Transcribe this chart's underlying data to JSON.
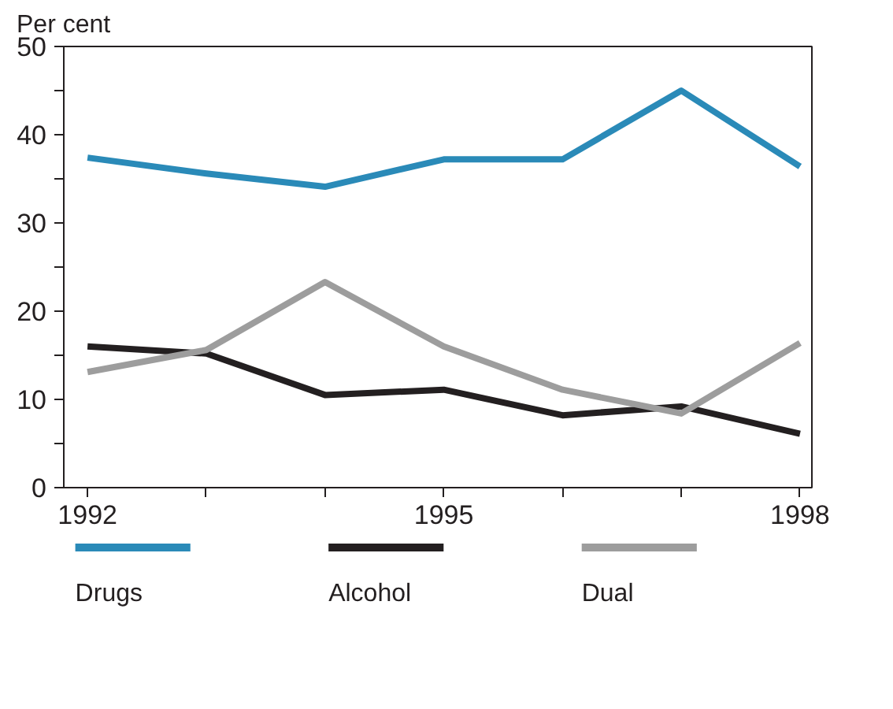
{
  "chart_data": {
    "type": "line",
    "ylabel": "Per cent",
    "x": [
      1992,
      1993,
      1994,
      1995,
      1996,
      1997,
      1998
    ],
    "xlim": [
      1991.8,
      1998.1
    ],
    "xticks": [
      1992,
      {
        "value": 1993,
        "label": null
      },
      {
        "value": 1994,
        "label": null
      },
      1995,
      {
        "value": 1996,
        "label": null
      },
      {
        "value": 1997,
        "label": null
      },
      1998
    ],
    "ylim": [
      0,
      50
    ],
    "yticks": [
      0,
      {
        "value": 5,
        "label": null
      },
      10,
      {
        "value": 15,
        "label": null
      },
      20,
      {
        "value": 25,
        "label": null
      },
      30,
      {
        "value": 35,
        "label": null
      },
      40,
      {
        "value": 45,
        "label": null
      },
      50
    ],
    "grid": false,
    "legend": "bottom",
    "marker": "none",
    "line_style": "solid",
    "series": [
      {
        "name": "Drugs",
        "color": "#2a8ab8",
        "values": [
          37.4,
          35.6,
          34.1,
          37.2,
          37.2,
          45,
          36.4
        ]
      },
      {
        "name": "Alcohol",
        "color": "#231f20",
        "values": [
          16,
          15.2,
          10.5,
          11.1,
          8.2,
          9.2,
          6.1
        ]
      },
      {
        "name": "Dual",
        "color": "#9d9d9d",
        "values": [
          13.1,
          15.6,
          23.3,
          16,
          11.1,
          8.4,
          16.4
        ]
      }
    ]
  }
}
